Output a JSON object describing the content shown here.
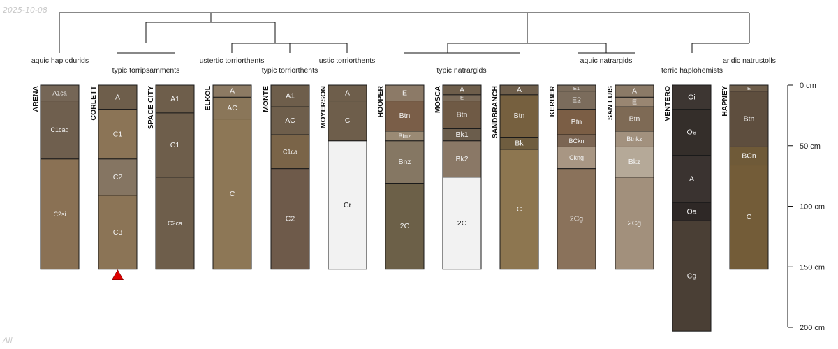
{
  "stamp_date": "2025-10-08",
  "filter_label": "All",
  "depth_axis": {
    "max_cm": 200,
    "ticks": [
      {
        "value": 0,
        "label": "0 cm"
      },
      {
        "value": 50,
        "label": "50 cm"
      },
      {
        "value": 100,
        "label": "100 cm"
      },
      {
        "value": 150,
        "label": "150 cm"
      },
      {
        "value": 200,
        "label": "200 cm"
      }
    ]
  },
  "marker": {
    "profile": "CORLETT",
    "color": "#dd0000"
  },
  "taxa_labels": [
    {
      "id": "aquic-haplodurids",
      "text": "aquic haplodurids"
    },
    {
      "id": "typic-torripsamments",
      "text": "typic torripsamments"
    },
    {
      "id": "ustertic-torriorthents",
      "text": "ustertic torriorthents"
    },
    {
      "id": "typic-torriorthents",
      "text": "typic torriorthents"
    },
    {
      "id": "ustic-torriorthents",
      "text": "ustic torriorthents"
    },
    {
      "id": "typic-natrargids",
      "text": "typic natrargids"
    },
    {
      "id": "aquic-natrargids",
      "text": "aquic natrargids"
    },
    {
      "id": "terric-haplohemists",
      "text": "terric haplohemists"
    },
    {
      "id": "aridic-natrustolls",
      "text": "aridic natrustolls"
    }
  ],
  "profiles": [
    {
      "name": "ARENA",
      "horizons": [
        {
          "name": "A1ca",
          "top": 0,
          "bottom": 13,
          "color": "#756656"
        },
        {
          "name": "C1cag",
          "top": 13,
          "bottom": 61,
          "color": "#6f5f4e"
        },
        {
          "name": "C2si",
          "top": 61,
          "bottom": 152,
          "color": "#8a7154"
        }
      ]
    },
    {
      "name": "CORLETT",
      "horizons": [
        {
          "name": "A",
          "top": 0,
          "bottom": 20,
          "color": "#6e5e4b"
        },
        {
          "name": "C1",
          "top": 20,
          "bottom": 61,
          "color": "#8b7456"
        },
        {
          "name": "C2",
          "top": 61,
          "bottom": 91,
          "color": "#857562"
        },
        {
          "name": "C3",
          "top": 91,
          "bottom": 152,
          "color": "#8b7456"
        }
      ]
    },
    {
      "name": "SPACE CITY",
      "horizons": [
        {
          "name": "A1",
          "top": 0,
          "bottom": 23,
          "color": "#6e5e4b"
        },
        {
          "name": "C1",
          "top": 23,
          "bottom": 76,
          "color": "#6e5e4b"
        },
        {
          "name": "C2ca",
          "top": 76,
          "bottom": 152,
          "color": "#6e5e4b"
        }
      ]
    },
    {
      "name": "ELKOL",
      "horizons": [
        {
          "name": "A",
          "top": 0,
          "bottom": 10,
          "color": "#8c7a63"
        },
        {
          "name": "AC",
          "top": 10,
          "bottom": 28,
          "color": "#8a7659"
        },
        {
          "name": "C",
          "top": 28,
          "bottom": 152,
          "color": "#8d7756"
        }
      ]
    },
    {
      "name": "MONTE",
      "horizons": [
        {
          "name": "A1",
          "top": 0,
          "bottom": 18,
          "color": "#6e5e4b"
        },
        {
          "name": "AC",
          "top": 18,
          "bottom": 41,
          "color": "#6e5e4b"
        },
        {
          "name": "C1ca",
          "top": 41,
          "bottom": 69,
          "color": "#7a6448"
        },
        {
          "name": "C2",
          "top": 69,
          "bottom": 152,
          "color": "#6e5a4a"
        }
      ]
    },
    {
      "name": "MOYERSON",
      "horizons": [
        {
          "name": "A",
          "top": 0,
          "bottom": 13,
          "color": "#6e5e4b"
        },
        {
          "name": "C",
          "top": 13,
          "bottom": 46,
          "color": "#6e5e4b"
        },
        {
          "name": "Cr",
          "top": 46,
          "bottom": 152,
          "color": "#f2f2f2"
        }
      ]
    },
    {
      "name": "HOOPER",
      "horizons": [
        {
          "name": "E",
          "top": 0,
          "bottom": 13,
          "color": "#8c7a67"
        },
        {
          "name": "Btn",
          "top": 13,
          "bottom": 38,
          "color": "#7a5e48"
        },
        {
          "name": "Btnz",
          "top": 38,
          "bottom": 46,
          "color": "#9a8a74"
        },
        {
          "name": "Bnz",
          "top": 46,
          "bottom": 81,
          "color": "#857763"
        },
        {
          "name": "2C",
          "top": 81,
          "bottom": 152,
          "color": "#6c6048"
        }
      ]
    },
    {
      "name": "MOSCA",
      "horizons": [
        {
          "name": "A",
          "top": 0,
          "bottom": 8,
          "color": "#6e5e4b"
        },
        {
          "name": "E",
          "top": 8,
          "bottom": 13,
          "color": "#7a6a58"
        },
        {
          "name": "Btn",
          "top": 13,
          "bottom": 36,
          "color": "#6f5a45"
        },
        {
          "name": "Bk1",
          "top": 36,
          "bottom": 46,
          "color": "#6b5d4c"
        },
        {
          "name": "Bk2",
          "top": 46,
          "bottom": 76,
          "color": "#8a7866"
        },
        {
          "name": "2C",
          "top": 76,
          "bottom": 152,
          "color": "#f2f2f2"
        }
      ]
    },
    {
      "name": "SANDBRANCH",
      "horizons": [
        {
          "name": "A",
          "top": 0,
          "bottom": 8,
          "color": "#6e5e4b"
        },
        {
          "name": "Btn",
          "top": 8,
          "bottom": 43,
          "color": "#76603f"
        },
        {
          "name": "Bk",
          "top": 43,
          "bottom": 53,
          "color": "#6f5d3f"
        },
        {
          "name": "C",
          "top": 53,
          "bottom": 152,
          "color": "#8d7650"
        }
      ]
    },
    {
      "name": "KERBER",
      "horizons": [
        {
          "name": "E1",
          "top": 0,
          "bottom": 5,
          "color": "#7b6c5c"
        },
        {
          "name": "E2",
          "top": 5,
          "bottom": 20,
          "color": "#7b6c5c"
        },
        {
          "name": "Btn",
          "top": 20,
          "bottom": 41,
          "color": "#7b5e45"
        },
        {
          "name": "BCkn",
          "top": 41,
          "bottom": 51,
          "color": "#7b6553"
        },
        {
          "name": "Ckng",
          "top": 51,
          "bottom": 69,
          "color": "#a89683"
        },
        {
          "name": "2Cg",
          "top": 69,
          "bottom": 152,
          "color": "#8a725b"
        }
      ]
    },
    {
      "name": "SAN LUIS",
      "horizons": [
        {
          "name": "A",
          "top": 0,
          "bottom": 10,
          "color": "#8b7a67"
        },
        {
          "name": "E",
          "top": 10,
          "bottom": 18,
          "color": "#998672"
        },
        {
          "name": "Btn",
          "top": 18,
          "bottom": 38,
          "color": "#7e6a55"
        },
        {
          "name": "Btnkz",
          "top": 38,
          "bottom": 51,
          "color": "#a2917e"
        },
        {
          "name": "Bkz",
          "top": 51,
          "bottom": 76,
          "color": "#b5a998"
        },
        {
          "name": "2Cg",
          "top": 76,
          "bottom": 152,
          "color": "#a2907c"
        }
      ]
    },
    {
      "name": "VENTERO",
      "horizons": [
        {
          "name": "Oi",
          "top": 0,
          "bottom": 20,
          "color": "#3d3632"
        },
        {
          "name": "Oe",
          "top": 20,
          "bottom": 58,
          "color": "#342e2a"
        },
        {
          "name": "A",
          "top": 58,
          "bottom": 97,
          "color": "#3a3330"
        },
        {
          "name": "Oa",
          "top": 97,
          "bottom": 112,
          "color": "#2e2826"
        },
        {
          "name": "Cg",
          "top": 112,
          "bottom": 203,
          "color": "#4a3f35"
        }
      ]
    },
    {
      "name": "HAPNEY",
      "horizons": [
        {
          "name": "E",
          "top": 0,
          "bottom": 5,
          "color": "#6e5e4b"
        },
        {
          "name": "Btn",
          "top": 5,
          "bottom": 51,
          "color": "#5e4e3e"
        },
        {
          "name": "BCn",
          "top": 51,
          "bottom": 66,
          "color": "#6f5a38"
        },
        {
          "name": "C",
          "top": 66,
          "bottom": 152,
          "color": "#735c38"
        }
      ]
    }
  ]
}
